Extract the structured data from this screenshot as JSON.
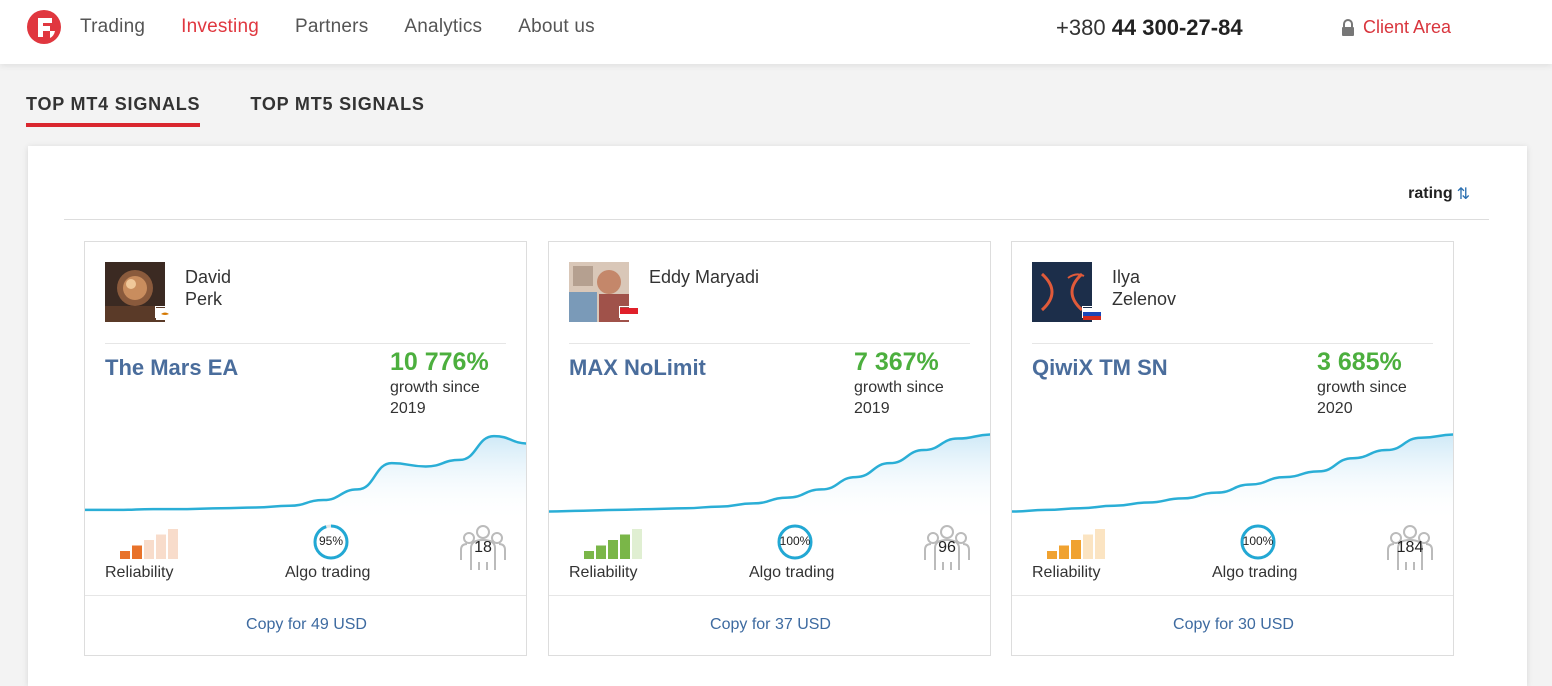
{
  "header": {
    "nav": [
      "Trading",
      "Investing",
      "Partners",
      "Analytics",
      "About us"
    ],
    "active_nav": "Investing",
    "phone_prefix": "+380",
    "phone_number": "44 300-27-84",
    "client_area": "Client Area",
    "brand_color": "#e0373f"
  },
  "tabs": [
    "TOP MT4 SIGNALS",
    "TOP MT5 SIGNALS"
  ],
  "sort": {
    "label": "rating",
    "icon": "sort-arrows-icon"
  },
  "labels": {
    "reliability": "Reliability",
    "algo": "Algo trading"
  },
  "cards": [
    {
      "first_name": "David",
      "last_name": "Perk",
      "flag": "cy",
      "strategy": "The Mars EA",
      "growth": "10 776%",
      "growth_label": "growth since",
      "growth_year": "2019",
      "reliability_level": 2,
      "reliability_color": "#e8722a",
      "reliability_light": "#f8dccb",
      "algo": "95%",
      "algo_fraction": 0.95,
      "subscribers": "18",
      "copy": "Copy for 49 USD",
      "curve": [
        0.05,
        0.05,
        0.06,
        0.06,
        0.07,
        0.08,
        0.1,
        0.17,
        0.3,
        0.62,
        0.58,
        0.66,
        0.95,
        0.86
      ]
    },
    {
      "first_name": "Eddy Maryadi",
      "last_name": "",
      "flag": "id",
      "strategy": "MAX NoLimit",
      "growth": "7 367%",
      "growth_label": "growth since",
      "growth_year": "2019",
      "reliability_level": 4,
      "reliability_color": "#7ab648",
      "reliability_light": "#e0efd2",
      "algo": "100%",
      "algo_fraction": 1,
      "subscribers": "96",
      "copy": "Copy for 37 USD",
      "curve": [
        0.03,
        0.04,
        0.05,
        0.06,
        0.07,
        0.09,
        0.13,
        0.2,
        0.3,
        0.45,
        0.62,
        0.78,
        0.92,
        0.97
      ]
    },
    {
      "first_name": "Ilya",
      "last_name": "Zelenov",
      "flag": "ru",
      "strategy": "QiwiX TM SN",
      "growth": "3 685%",
      "growth_label": "growth since",
      "growth_year": "2020",
      "reliability_level": 3,
      "reliability_color": "#f0a230",
      "reliability_light": "#fbe4c2",
      "algo": "100%",
      "algo_fraction": 1,
      "subscribers": "184",
      "copy": "Copy for 30 USD",
      "curve": [
        0.03,
        0.05,
        0.07,
        0.1,
        0.14,
        0.19,
        0.26,
        0.36,
        0.45,
        0.52,
        0.68,
        0.78,
        0.93,
        0.97
      ]
    }
  ]
}
